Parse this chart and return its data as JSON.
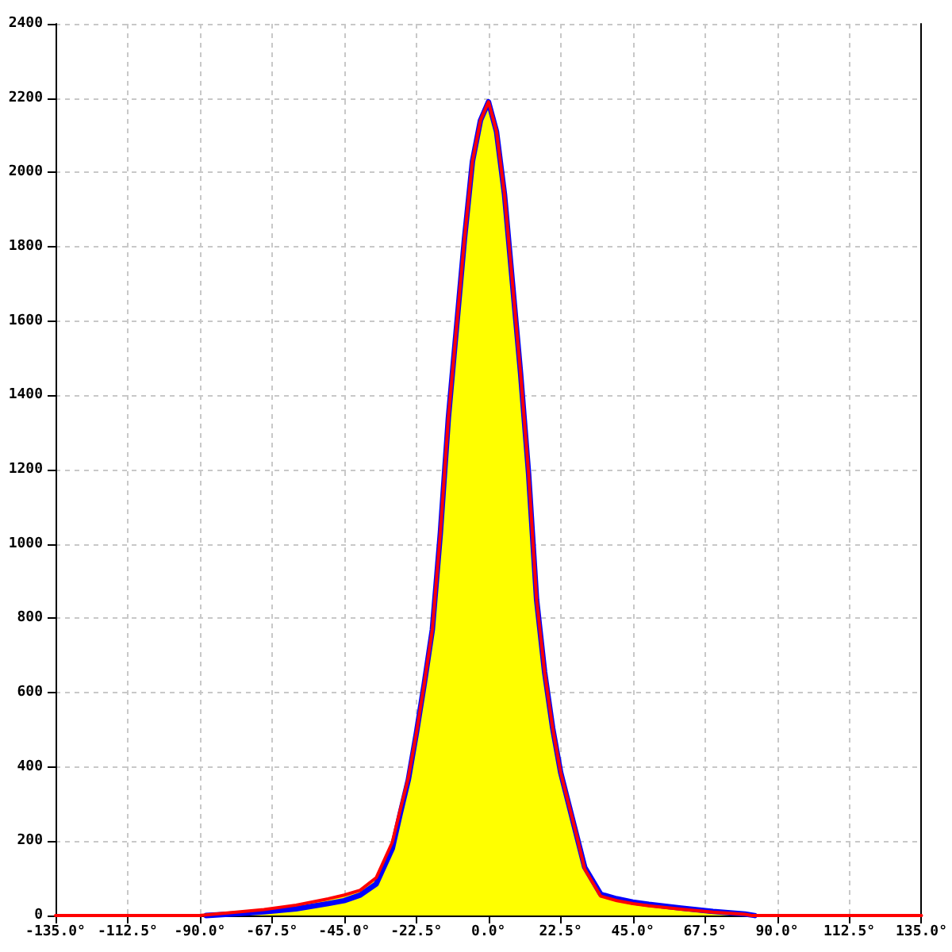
{
  "chart_data": {
    "type": "line",
    "series": [
      {
        "type": "area",
        "color": "#ffff00",
        "x": [
          -90,
          -80,
          -70,
          -60,
          -50,
          -45,
          -40,
          -35,
          -30,
          -27.5,
          -25,
          -22.5,
          -20,
          -17.5,
          -15,
          -12.5,
          -10,
          -7.5,
          -5,
          -2.5,
          0,
          2.5,
          5,
          7.5,
          10,
          12.5,
          15,
          17.5,
          20,
          22.5,
          25,
          27.5,
          30,
          35,
          40,
          45,
          50,
          60,
          70,
          80,
          82
        ],
        "values": [
          0,
          8,
          16,
          28,
          45,
          55,
          68,
          102,
          197,
          285,
          370,
          490,
          625,
          770,
          1030,
          1340,
          1580,
          1820,
          2030,
          2140,
          2190,
          2110,
          1940,
          1700,
          1460,
          1190,
          850,
          655,
          505,
          385,
          300,
          215,
          125,
          52,
          40,
          32,
          26,
          17,
          9,
          3,
          0
        ]
      },
      {
        "color": "#0000ff",
        "x": [
          -88,
          -80,
          -70,
          -60,
          -50,
          -45,
          -40,
          -35,
          -30,
          -27.5,
          -25,
          -22.5,
          -20,
          -17.5,
          -15,
          -12.5,
          -10,
          -7.5,
          -5,
          -2.5,
          0,
          2.5,
          5,
          7.5,
          10,
          12.5,
          15,
          17.5,
          20,
          22.5,
          25,
          27.5,
          30,
          35,
          40,
          45,
          50,
          60,
          70,
          80,
          83
        ],
        "values": [
          0,
          4,
          10,
          18,
          32,
          40,
          55,
          85,
          180,
          275,
          365,
          490,
          625,
          770,
          1030,
          1340,
          1580,
          1820,
          2030,
          2140,
          2190,
          2110,
          1940,
          1700,
          1460,
          1190,
          850,
          655,
          505,
          385,
          300,
          215,
          130,
          57,
          45,
          36,
          30,
          20,
          11,
          4,
          0
        ]
      },
      {
        "color": "#ff0000",
        "x": [
          -135,
          -90,
          -80,
          -70,
          -60,
          -50,
          -45,
          -40,
          -35,
          -30,
          -27.5,
          -25,
          -22.5,
          -20,
          -17.5,
          -15,
          -12.5,
          -10,
          -7.5,
          -5,
          -2.5,
          0,
          2.5,
          5,
          7.5,
          10,
          12.5,
          15,
          17.5,
          20,
          22.5,
          25,
          27.5,
          30,
          35,
          40,
          45,
          50,
          60,
          70,
          80,
          82,
          135
        ],
        "values": [
          0,
          0,
          8,
          16,
          28,
          45,
          55,
          68,
          102,
          197,
          285,
          370,
          490,
          625,
          770,
          1030,
          1340,
          1580,
          1820,
          2030,
          2140,
          2190,
          2110,
          1940,
          1700,
          1460,
          1190,
          850,
          655,
          505,
          385,
          300,
          215,
          125,
          52,
          40,
          32,
          26,
          17,
          9,
          3,
          0,
          0
        ]
      }
    ],
    "xlim": [
      -135,
      135
    ],
    "xticks": [
      {
        "value": -135,
        "label": "-135.0°"
      },
      {
        "value": -112.5,
        "label": "-112.5°"
      },
      {
        "value": -90,
        "label": "-90.0°"
      },
      {
        "value": -67.5,
        "label": "-67.5°"
      },
      {
        "value": -45,
        "label": "-45.0°"
      },
      {
        "value": -22.5,
        "label": "-22.5°"
      },
      {
        "value": 0,
        "label": "0.0°"
      },
      {
        "value": 22.5,
        "label": "22.5°"
      },
      {
        "value": 45,
        "label": "45.0°"
      },
      {
        "value": 67.5,
        "label": "67.5°"
      },
      {
        "value": 90,
        "label": "90.0°"
      },
      {
        "value": 112.5,
        "label": "112.5°"
      },
      {
        "value": 135,
        "label": "135.0°"
      }
    ],
    "ylim": [
      0,
      2400
    ],
    "yticks": [
      0,
      200,
      400,
      600,
      800,
      1000,
      1200,
      1400,
      1600,
      1800,
      2000,
      2200,
      2400
    ],
    "grid": true,
    "marker": "none",
    "line_style": "solid"
  }
}
